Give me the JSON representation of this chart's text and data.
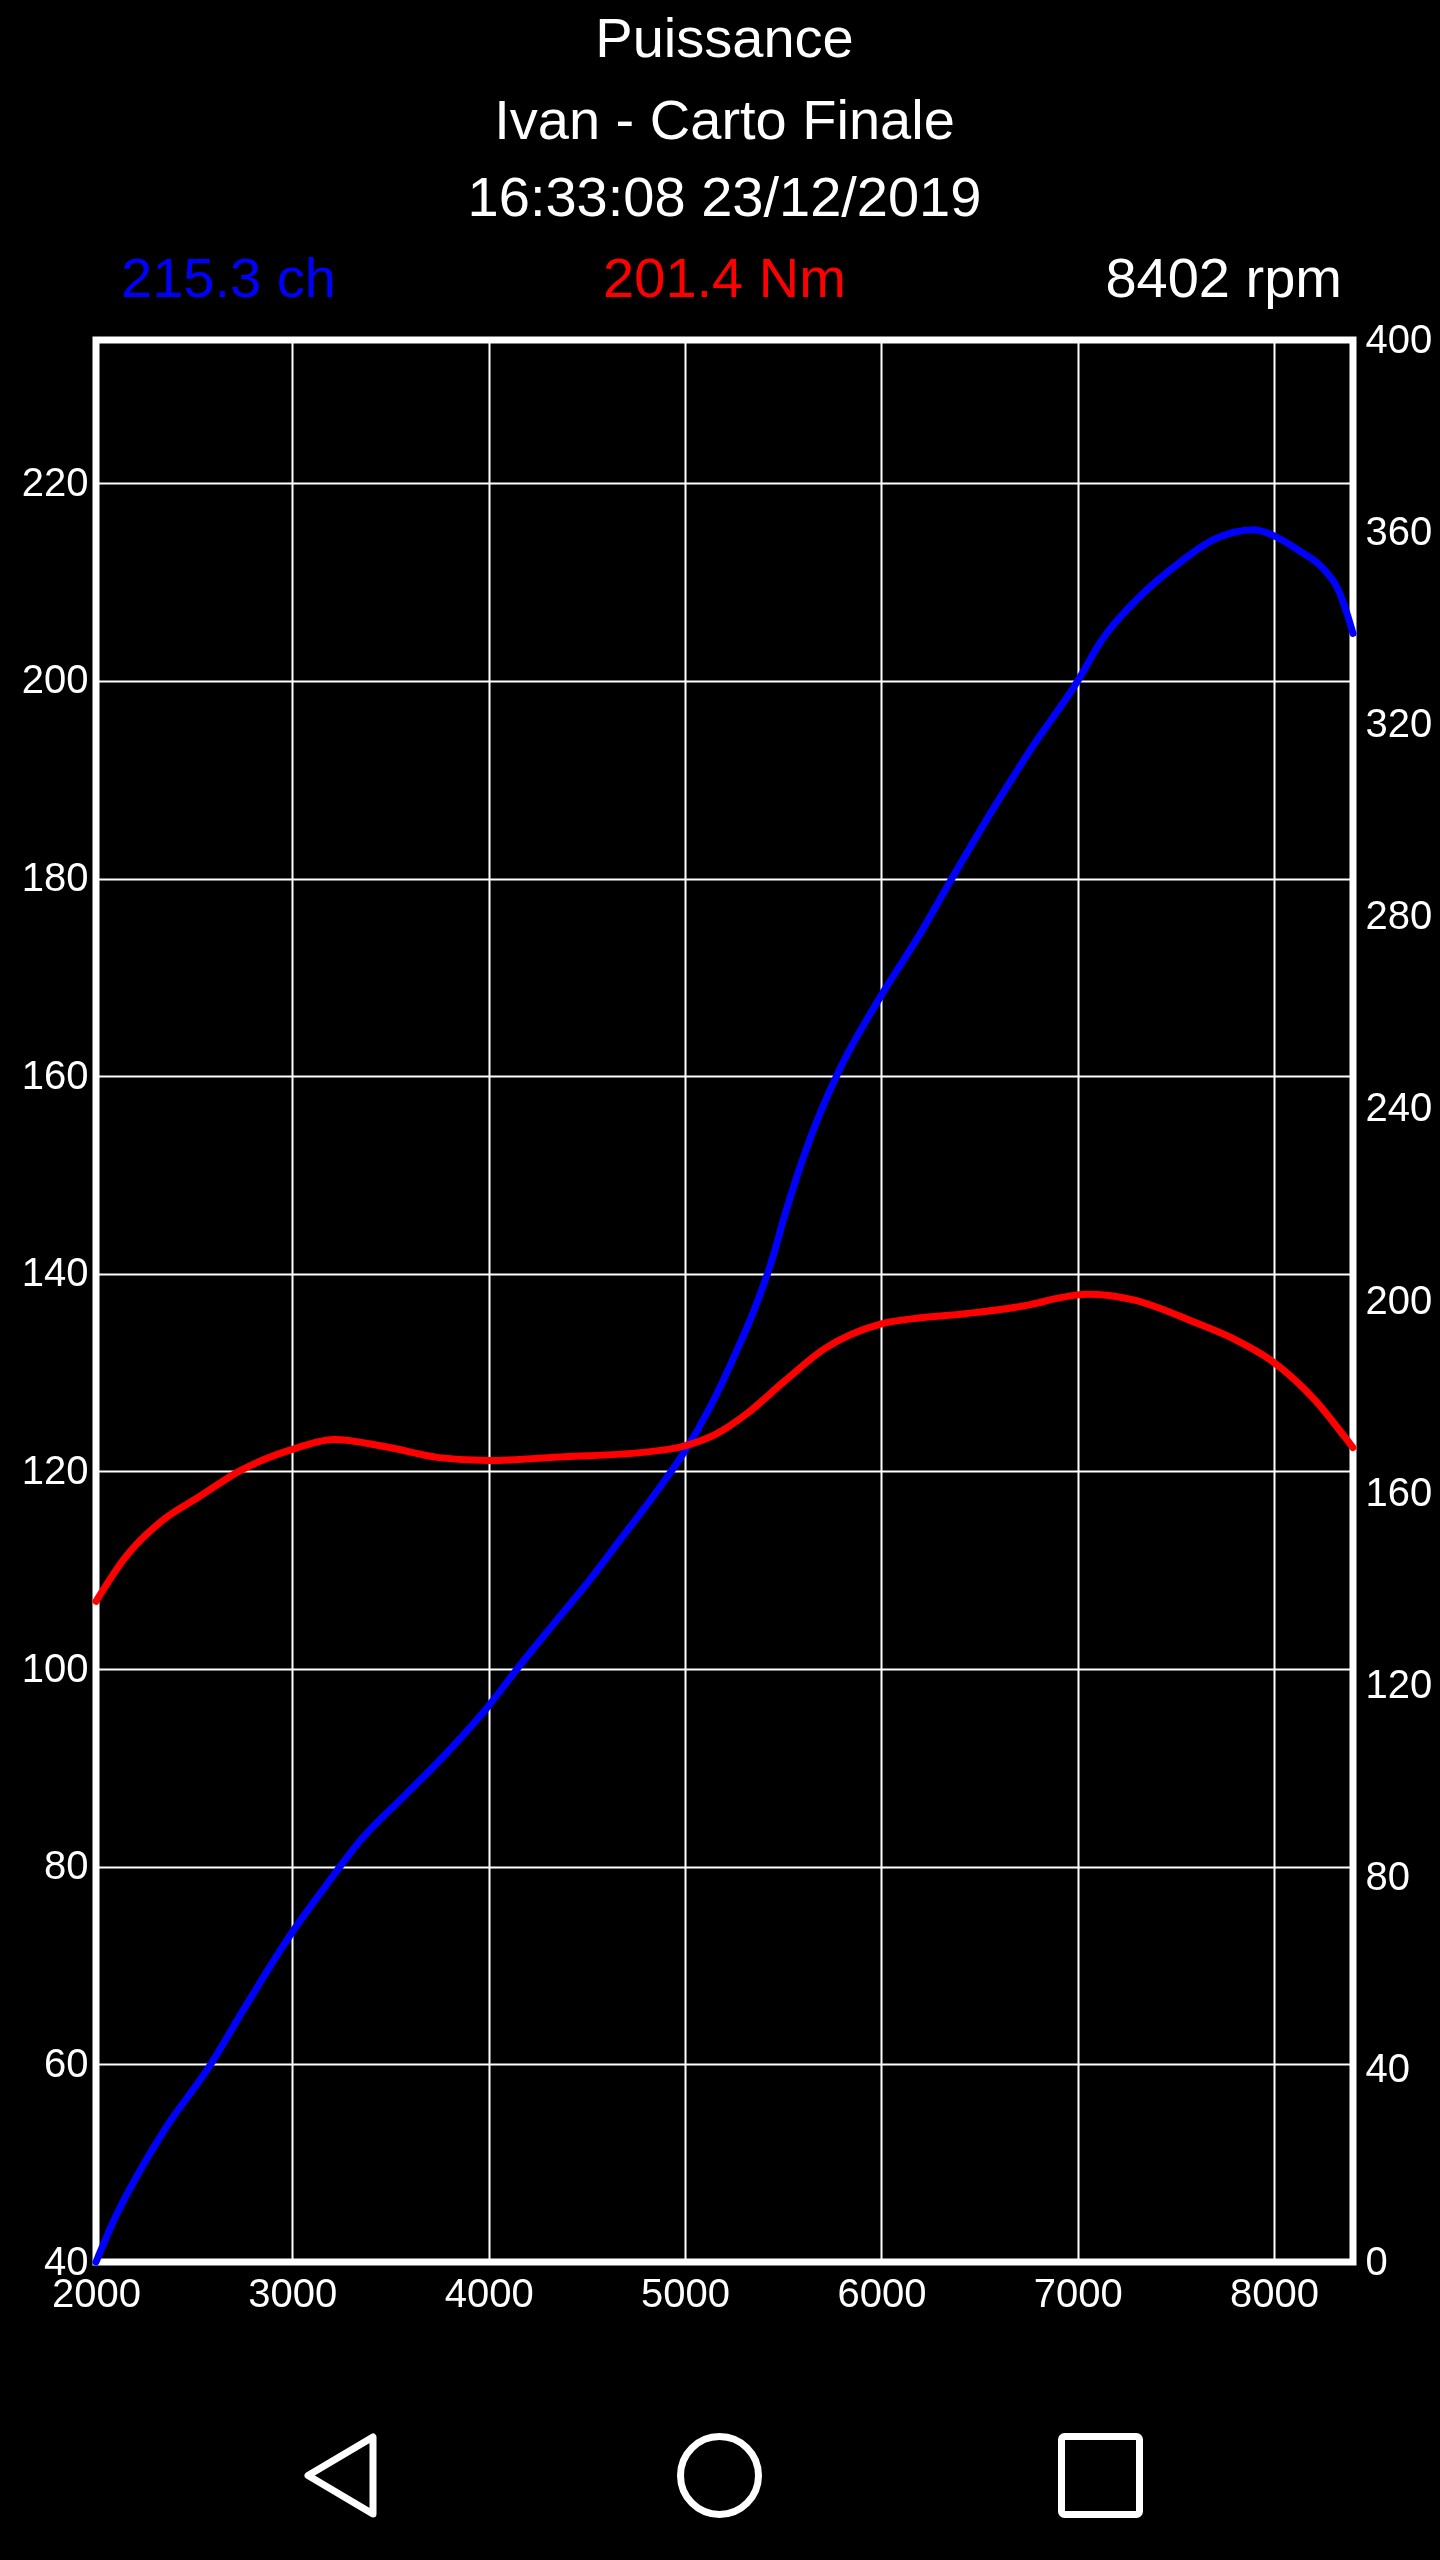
{
  "chart_data": {
    "type": "line",
    "title": "Puissance",
    "subtitle": "Ivan - Carto Finale",
    "annotations": [
      "16:33:08 23/12/2019",
      "215.3 ch",
      "201.4 Nm",
      "8402 rpm"
    ],
    "xlim": [
      2000,
      8402
    ],
    "xticks": [
      2000,
      3000,
      4000,
      5000,
      6000,
      7000,
      8000
    ],
    "ylim": [
      40,
      234.5
    ],
    "yticks": [
      40,
      60,
      80,
      100,
      120,
      140,
      160,
      180,
      200,
      220
    ],
    "y2lim": [
      0,
      400
    ],
    "y2ticks": [
      0,
      40,
      80,
      120,
      160,
      200,
      240,
      280,
      320,
      360,
      400
    ],
    "grid": true,
    "series": [
      {
        "color": "#0000ff",
        "x": [
          2000,
          2100,
          2234,
          2350,
          2584,
          2759,
          3000,
          3168,
          3344,
          3577,
          3752,
          4000,
          4160,
          4336,
          4522,
          4651,
          4864,
          4994,
          5130,
          5263,
          5369,
          5449,
          5503,
          5643,
          5783,
          6000,
          6200,
          6356,
          6574,
          6765,
          7000,
          7118,
          7309,
          7527,
          7691,
          7900,
          7962,
          8126,
          8263,
          8320,
          8372,
          8402
        ],
        "values": [
          40,
          44.6,
          49.6,
          53.4,
          60,
          65.8,
          73.4,
          78,
          82.6,
          87.3,
          90.8,
          96.3,
          100.4,
          104.7,
          109.2,
          112.6,
          118.2,
          121.9,
          126.6,
          132.2,
          137.2,
          141.8,
          145.6,
          154,
          160.5,
          168.2,
          174.5,
          179.9,
          187.2,
          193.2,
          200,
          204,
          208.4,
          212.1,
          214.3,
          215.3,
          215,
          213.2,
          211.1,
          209.5,
          206.8,
          204.8
        ]
      },
      {
        "color": "#ff0000",
        "axis": "y2",
        "x": [
          2000,
          2150,
          2337,
          2523,
          2735,
          2991,
          3215,
          3481,
          3747,
          3994,
          4385,
          4784,
          4994,
          5157,
          5316,
          5503,
          5715,
          5995,
          6200,
          6437,
          6765,
          6900,
          7050,
          7278,
          7605,
          7800,
          7979,
          8212,
          8362,
          8402
        ],
        "values": [
          137.5,
          146.7,
          154.3,
          159.2,
          164.7,
          169,
          171.2,
          169.6,
          167.4,
          166.8,
          167.6,
          168.5,
          169.8,
          172.3,
          176.6,
          183.2,
          190.2,
          195.2,
          196.5,
          197.4,
          199.3,
          200.6,
          201.4,
          200.3,
          195.4,
          192,
          187.8,
          179.2,
          171.6,
          169.5
        ]
      }
    ]
  }
}
